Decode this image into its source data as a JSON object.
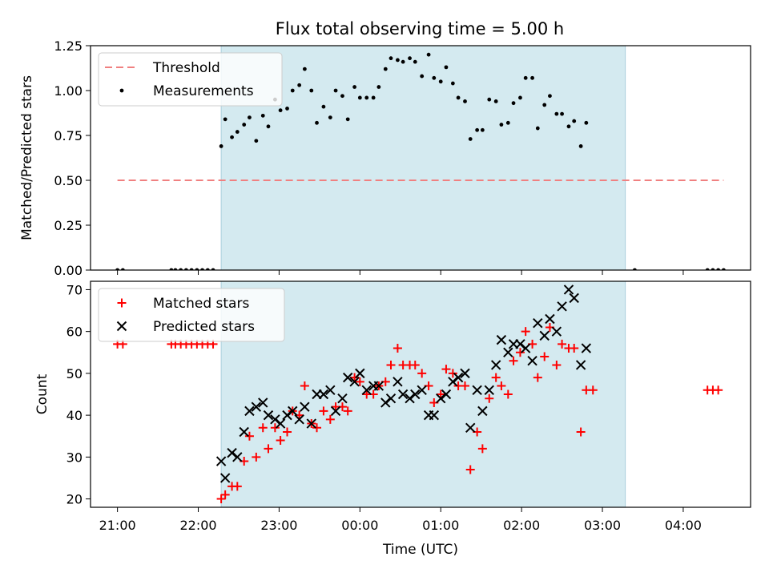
{
  "figure": {
    "title": "Flux total observing time = 5.00 h"
  },
  "chart_data": [
    {
      "type": "scatter",
      "ylabel": "Matched/Predicted stars",
      "xlabel": "",
      "xlim": [
        "20:40",
        "04:50"
      ],
      "ylim": [
        0,
        1.25
      ],
      "yticks": [
        "0.00",
        "0.25",
        "0.50",
        "0.75",
        "1.00",
        "1.25"
      ],
      "xtick_values": [
        "21:00",
        "22:00",
        "23:00",
        "00:00",
        "01:00",
        "02:00",
        "03:00",
        "04:00"
      ],
      "shaded_span": [
        "22:17",
        "03:17"
      ],
      "shade_color": "#d4eaf0",
      "threshold": {
        "name": "Threshold",
        "y": 0.5,
        "x_range": [
          "21:00",
          "04:30"
        ],
        "color": "#f08080"
      },
      "series": [
        {
          "name": "Measurements",
          "color": "#000000",
          "marker": "dot",
          "points": [
            [
              "21:00",
              0.0
            ],
            [
              "21:04",
              0.0
            ],
            [
              "21:40",
              0.0
            ],
            [
              "21:43",
              0.0
            ],
            [
              "21:47",
              0.0
            ],
            [
              "21:51",
              0.0
            ],
            [
              "21:55",
              0.0
            ],
            [
              "21:59",
              0.0
            ],
            [
              "22:03",
              0.0
            ],
            [
              "22:07",
              0.0
            ],
            [
              "22:11",
              0.0
            ],
            [
              "22:17",
              0.69
            ],
            [
              "22:20",
              0.84
            ],
            [
              "22:25",
              0.74
            ],
            [
              "22:29",
              0.77
            ],
            [
              "22:34",
              0.81
            ],
            [
              "22:38",
              0.85
            ],
            [
              "22:43",
              0.72
            ],
            [
              "22:48",
              0.86
            ],
            [
              "22:52",
              0.8
            ],
            [
              "22:57",
              0.95
            ],
            [
              "23:01",
              0.89
            ],
            [
              "23:06",
              0.9
            ],
            [
              "23:10",
              1.0
            ],
            [
              "23:15",
              1.03
            ],
            [
              "23:19",
              1.12
            ],
            [
              "23:24",
              1.0
            ],
            [
              "23:28",
              0.82
            ],
            [
              "23:33",
              0.91
            ],
            [
              "23:38",
              0.85
            ],
            [
              "23:42",
              1.0
            ],
            [
              "23:47",
              0.97
            ],
            [
              "23:51",
              0.84
            ],
            [
              "23:56",
              1.02
            ],
            [
              "00:00",
              0.96
            ],
            [
              "00:05",
              0.96
            ],
            [
              "00:10",
              0.96
            ],
            [
              "00:14",
              1.02
            ],
            [
              "00:19",
              1.12
            ],
            [
              "00:23",
              1.18
            ],
            [
              "00:28",
              1.17
            ],
            [
              "00:32",
              1.16
            ],
            [
              "00:37",
              1.18
            ],
            [
              "00:41",
              1.16
            ],
            [
              "00:46",
              1.08
            ],
            [
              "00:51",
              1.2
            ],
            [
              "00:55",
              1.07
            ],
            [
              "01:00",
              1.05
            ],
            [
              "01:04",
              1.13
            ],
            [
              "01:09",
              1.04
            ],
            [
              "01:13",
              0.96
            ],
            [
              "01:18",
              0.94
            ],
            [
              "01:22",
              0.73
            ],
            [
              "01:27",
              0.78
            ],
            [
              "01:31",
              0.78
            ],
            [
              "01:36",
              0.95
            ],
            [
              "01:41",
              0.94
            ],
            [
              "01:45",
              0.81
            ],
            [
              "01:50",
              0.82
            ],
            [
              "01:54",
              0.93
            ],
            [
              "01:59",
              0.96
            ],
            [
              "02:03",
              1.07
            ],
            [
              "02:08",
              1.07
            ],
            [
              "02:12",
              0.79
            ],
            [
              "02:17",
              0.92
            ],
            [
              "02:21",
              0.97
            ],
            [
              "02:26",
              0.87
            ],
            [
              "02:30",
              0.87
            ],
            [
              "02:35",
              0.8
            ],
            [
              "02:39",
              0.83
            ],
            [
              "02:44",
              0.69
            ],
            [
              "02:48",
              0.82
            ],
            [
              "03:24",
              0.0
            ],
            [
              "04:18",
              0.0
            ],
            [
              "04:22",
              0.0
            ],
            [
              "04:26",
              0.0
            ],
            [
              "04:30",
              0.0
            ]
          ]
        }
      ],
      "legend": {
        "location": "upper-left",
        "entries": [
          "Threshold",
          "Measurements"
        ]
      }
    },
    {
      "type": "scatter",
      "ylabel": "Count",
      "xlabel": "Time (UTC)",
      "xlim": [
        "20:40",
        "04:50"
      ],
      "ylim": [
        18,
        72
      ],
      "yticks": [
        "20",
        "30",
        "40",
        "50",
        "60",
        "70"
      ],
      "xticks": [
        "21:00",
        "22:00",
        "23:00",
        "00:00",
        "01:00",
        "02:00",
        "03:00",
        "04:00"
      ],
      "xtick_values": [
        "21:00",
        "22:00",
        "23:00",
        "00:00",
        "01:00",
        "02:00",
        "03:00",
        "04:00"
      ],
      "shaded_span": [
        "22:17",
        "03:17"
      ],
      "shade_color": "#d4eaf0",
      "series": [
        {
          "name": "Matched stars",
          "color": "#ff0000",
          "marker": "plus",
          "points": [
            [
              "21:00",
              57
            ],
            [
              "21:04",
              57
            ],
            [
              "21:40",
              57
            ],
            [
              "21:43",
              57
            ],
            [
              "21:47",
              57
            ],
            [
              "21:51",
              57
            ],
            [
              "21:55",
              57
            ],
            [
              "21:59",
              57
            ],
            [
              "22:03",
              57
            ],
            [
              "22:07",
              57
            ],
            [
              "22:11",
              57
            ],
            [
              "22:17",
              20
            ],
            [
              "22:20",
              21
            ],
            [
              "22:25",
              23
            ],
            [
              "22:29",
              23
            ],
            [
              "22:34",
              29
            ],
            [
              "22:38",
              35
            ],
            [
              "22:43",
              30
            ],
            [
              "22:48",
              37
            ],
            [
              "22:52",
              32
            ],
            [
              "22:57",
              37
            ],
            [
              "23:01",
              34
            ],
            [
              "23:06",
              36
            ],
            [
              "23:10",
              41
            ],
            [
              "23:15",
              40
            ],
            [
              "23:19",
              47
            ],
            [
              "23:24",
              38
            ],
            [
              "23:28",
              37
            ],
            [
              "23:33",
              41
            ],
            [
              "23:38",
              39
            ],
            [
              "23:42",
              42
            ],
            [
              "23:47",
              42
            ],
            [
              "23:51",
              41
            ],
            [
              "23:56",
              49
            ],
            [
              "00:00",
              48
            ],
            [
              "00:05",
              45
            ],
            [
              "00:10",
              45
            ],
            [
              "00:14",
              47
            ],
            [
              "00:19",
              48
            ],
            [
              "00:23",
              52
            ],
            [
              "00:28",
              56
            ],
            [
              "00:32",
              52
            ],
            [
              "00:37",
              52
            ],
            [
              "00:41",
              52
            ],
            [
              "00:46",
              50
            ],
            [
              "00:51",
              47
            ],
            [
              "00:55",
              43
            ],
            [
              "01:00",
              45
            ],
            [
              "01:04",
              51
            ],
            [
              "01:09",
              50
            ],
            [
              "01:13",
              47
            ],
            [
              "01:18",
              47
            ],
            [
              "01:22",
              27
            ],
            [
              "01:27",
              36
            ],
            [
              "01:31",
              32
            ],
            [
              "01:36",
              44
            ],
            [
              "01:41",
              49
            ],
            [
              "01:45",
              47
            ],
            [
              "01:50",
              45
            ],
            [
              "01:54",
              53
            ],
            [
              "01:59",
              55
            ],
            [
              "02:03",
              60
            ],
            [
              "02:08",
              57
            ],
            [
              "02:12",
              49
            ],
            [
              "02:17",
              54
            ],
            [
              "02:21",
              61
            ],
            [
              "02:26",
              52
            ],
            [
              "02:30",
              57
            ],
            [
              "02:35",
              56
            ],
            [
              "02:39",
              56
            ],
            [
              "02:44",
              36
            ],
            [
              "02:48",
              46
            ],
            [
              "02:53",
              46
            ],
            [
              "04:18",
              46
            ],
            [
              "04:22",
              46
            ],
            [
              "04:26",
              46
            ]
          ]
        },
        {
          "name": "Predicted stars",
          "color": "#000000",
          "marker": "x",
          "points": [
            [
              "22:17",
              29
            ],
            [
              "22:20",
              25
            ],
            [
              "22:25",
              31
            ],
            [
              "22:29",
              30
            ],
            [
              "22:34",
              36
            ],
            [
              "22:38",
              41
            ],
            [
              "22:43",
              42
            ],
            [
              "22:48",
              43
            ],
            [
              "22:52",
              40
            ],
            [
              "22:57",
              39
            ],
            [
              "23:01",
              38
            ],
            [
              "23:06",
              40
            ],
            [
              "23:10",
              41
            ],
            [
              "23:15",
              39
            ],
            [
              "23:19",
              42
            ],
            [
              "23:24",
              38
            ],
            [
              "23:28",
              45
            ],
            [
              "23:33",
              45
            ],
            [
              "23:38",
              46
            ],
            [
              "23:42",
              41
            ],
            [
              "23:47",
              44
            ],
            [
              "23:51",
              49
            ],
            [
              "23:56",
              48
            ],
            [
              "00:00",
              50
            ],
            [
              "00:05",
              46
            ],
            [
              "00:10",
              47
            ],
            [
              "00:14",
              47
            ],
            [
              "00:19",
              43
            ],
            [
              "00:23",
              44
            ],
            [
              "00:28",
              48
            ],
            [
              "00:32",
              45
            ],
            [
              "00:37",
              44
            ],
            [
              "00:41",
              45
            ],
            [
              "00:46",
              46
            ],
            [
              "00:51",
              40
            ],
            [
              "00:55",
              40
            ],
            [
              "01:00",
              44
            ],
            [
              "01:04",
              45
            ],
            [
              "01:09",
              48
            ],
            [
              "01:13",
              49
            ],
            [
              "01:18",
              50
            ],
            [
              "01:22",
              37
            ],
            [
              "01:27",
              46
            ],
            [
              "01:31",
              41
            ],
            [
              "01:36",
              46
            ],
            [
              "01:41",
              52
            ],
            [
              "01:45",
              58
            ],
            [
              "01:50",
              55
            ],
            [
              "01:54",
              57
            ],
            [
              "01:59",
              57
            ],
            [
              "02:03",
              56
            ],
            [
              "02:08",
              53
            ],
            [
              "02:12",
              62
            ],
            [
              "02:17",
              59
            ],
            [
              "02:21",
              63
            ],
            [
              "02:26",
              60
            ],
            [
              "02:30",
              66
            ],
            [
              "02:35",
              70
            ],
            [
              "02:39",
              68
            ],
            [
              "02:44",
              52
            ],
            [
              "02:48",
              56
            ]
          ]
        }
      ],
      "legend": {
        "location": "upper-left",
        "entries": [
          "Matched stars",
          "Predicted stars"
        ]
      }
    }
  ]
}
